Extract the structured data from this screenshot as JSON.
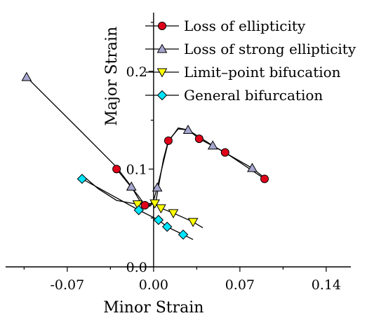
{
  "chart_data": {
    "type": "scatter",
    "title": "",
    "xlabel": "Minor Strain",
    "ylabel": "Major Strain",
    "xlim": [
      -0.12,
      0.16
    ],
    "ylim": [
      0.0,
      0.26
    ],
    "x_ticks": [
      -0.07,
      0,
      0.07,
      0.14
    ],
    "x_tick_labels": [
      "-0.07",
      "0.00",
      "0.07",
      "0.14"
    ],
    "y_ticks": [
      0.0,
      0.1,
      0.2
    ],
    "y_tick_labels": [
      "0.0",
      "0.1",
      "0.2"
    ],
    "grid": false,
    "legend_position": "top-right",
    "series": [
      {
        "name": "Loss of ellipticity",
        "marker": "circle",
        "color": "#e0001a",
        "points": [
          [
            -0.03,
            0.1
          ],
          [
            -0.007,
            0.063
          ],
          [
            0.012,
            0.129
          ],
          [
            0.037,
            0.131
          ],
          [
            0.058,
            0.117
          ],
          [
            0.09,
            0.09
          ]
        ],
        "curve": [
          [
            -0.03,
            0.1
          ],
          [
            -0.012,
            0.072
          ],
          [
            -0.007,
            0.063
          ],
          [
            -0.003,
            0.062
          ],
          [
            0.002,
            0.068
          ],
          [
            0.008,
            0.11
          ],
          [
            0.012,
            0.129
          ],
          [
            0.02,
            0.141
          ],
          [
            0.028,
            0.14
          ],
          [
            0.037,
            0.131
          ],
          [
            0.058,
            0.117
          ],
          [
            0.09,
            0.09
          ]
        ]
      },
      {
        "name": "Loss of strong ellipticity",
        "marker": "triangle-up",
        "color": "#a6a6cf",
        "points": [
          [
            -0.103,
            0.194
          ],
          [
            -0.018,
            0.082
          ],
          [
            0.003,
            0.081
          ],
          [
            0.028,
            0.14
          ],
          [
            0.048,
            0.124
          ],
          [
            0.08,
            0.101
          ]
        ],
        "curve": [
          [
            -0.103,
            0.194
          ],
          [
            -0.06,
            0.14
          ],
          [
            -0.03,
            0.102
          ],
          [
            -0.018,
            0.082
          ],
          [
            -0.01,
            0.065
          ],
          [
            -0.004,
            0.062
          ],
          [
            0.0,
            0.068
          ],
          [
            0.003,
            0.081
          ],
          [
            0.012,
            0.128
          ],
          [
            0.02,
            0.142
          ],
          [
            0.028,
            0.14
          ],
          [
            0.048,
            0.124
          ],
          [
            0.08,
            0.101
          ],
          [
            0.09,
            0.091
          ]
        ]
      },
      {
        "name": "Limit–point bifucation",
        "marker": "triangle-down",
        "color": "#ffff00",
        "points": [
          [
            -0.013,
            0.064
          ],
          [
            0.001,
            0.065
          ],
          [
            0.006,
            0.06
          ],
          [
            0.016,
            0.055
          ],
          [
            0.032,
            0.046
          ]
        ],
        "curve": [
          [
            -0.058,
            0.094
          ],
          [
            -0.045,
            0.08
          ],
          [
            -0.03,
            0.068
          ],
          [
            -0.013,
            0.064
          ],
          [
            0.001,
            0.065
          ],
          [
            0.006,
            0.06
          ],
          [
            0.016,
            0.055
          ],
          [
            0.032,
            0.046
          ],
          [
            0.04,
            0.04
          ]
        ]
      },
      {
        "name": "General bifurcation",
        "marker": "diamond",
        "color": "#00e5ff",
        "points": [
          [
            -0.058,
            0.09
          ],
          [
            -0.012,
            0.058
          ],
          [
            0.004,
            0.048
          ],
          [
            0.011,
            0.041
          ],
          [
            0.024,
            0.033
          ]
        ],
        "curve": [
          [
            -0.058,
            0.09
          ],
          [
            -0.035,
            0.074
          ],
          [
            -0.012,
            0.058
          ],
          [
            0.004,
            0.048
          ],
          [
            0.011,
            0.041
          ],
          [
            0.024,
            0.033
          ],
          [
            0.032,
            0.028
          ]
        ]
      }
    ]
  }
}
